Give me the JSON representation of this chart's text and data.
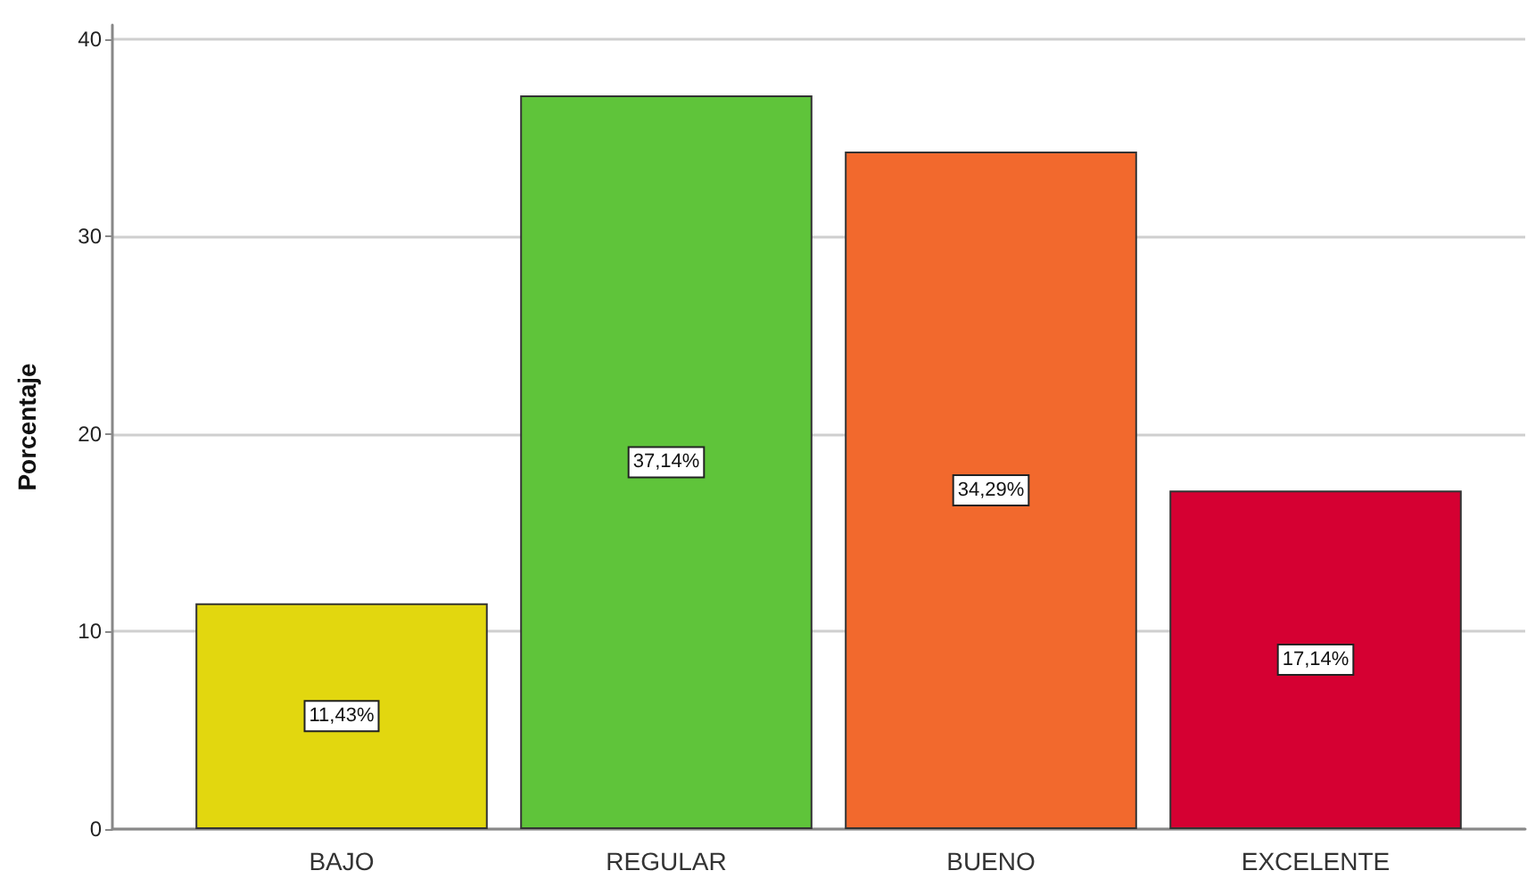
{
  "chart_data": {
    "type": "bar",
    "ylabel": "Porcentaje",
    "categories": [
      "BAJO",
      "REGULAR",
      "BUENO",
      "EXCELENTE"
    ],
    "values": [
      11.43,
      37.14,
      34.29,
      17.14
    ],
    "colors": [
      "#e2d70f",
      "#5fc43a",
      "#f2692d",
      "#d50032"
    ],
    "value_labels": [
      "11,43%",
      "37,14%",
      "34,29%",
      "17,14%"
    ],
    "ylim": [
      0,
      40.7
    ],
    "yticks": [
      0,
      10,
      20,
      30,
      40
    ],
    "grid": "y"
  }
}
